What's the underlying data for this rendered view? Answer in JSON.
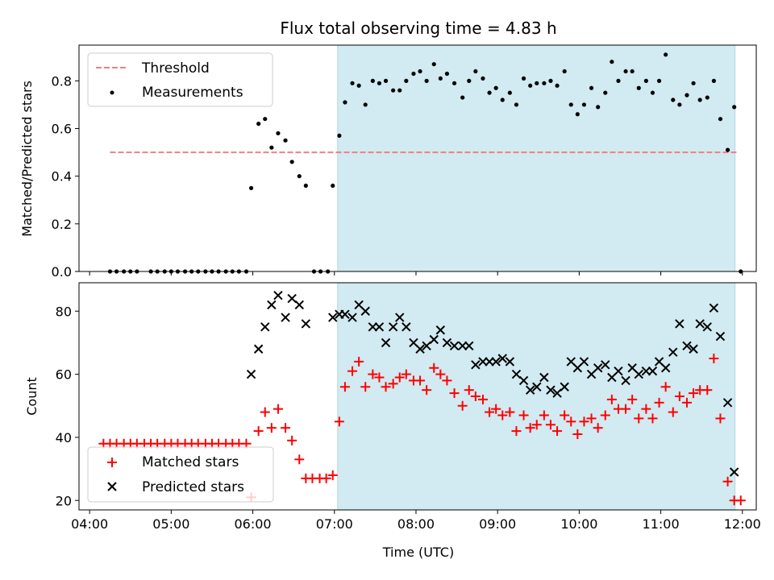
{
  "chart_data": [
    {
      "type": "scatter",
      "title": "Flux total observing time = 4.83 h",
      "xlabel": "",
      "ylabel": "Matched/Predicted stars",
      "ylim": [
        0,
        0.95
      ],
      "yticks": [
        "0.0",
        "0.2",
        "0.4",
        "0.6",
        "0.8"
      ],
      "ytick_values": [
        0,
        0.2,
        0.4,
        0.6,
        0.8
      ],
      "legend_position": "upper-left",
      "threshold": {
        "name": "Threshold",
        "value": 0.5,
        "x_range": [
          4.25,
          11.93
        ],
        "color": "#f08080",
        "style": "dashed"
      },
      "series": [
        {
          "name": "Measurements",
          "color": "#000000",
          "marker": "dot",
          "points": [
            [
              4.25,
              0.0
            ],
            [
              4.33,
              0.0
            ],
            [
              4.42,
              0.0
            ],
            [
              4.5,
              0.0
            ],
            [
              4.58,
              0.0
            ],
            [
              4.75,
              0.0
            ],
            [
              4.83,
              0.0
            ],
            [
              4.92,
              0.0
            ],
            [
              5.0,
              0.0
            ],
            [
              5.08,
              0.0
            ],
            [
              5.17,
              0.0
            ],
            [
              5.25,
              0.0
            ],
            [
              5.33,
              0.0
            ],
            [
              5.42,
              0.0
            ],
            [
              5.5,
              0.0
            ],
            [
              5.58,
              0.0
            ],
            [
              5.67,
              0.0
            ],
            [
              5.75,
              0.0
            ],
            [
              5.83,
              0.0
            ],
            [
              5.92,
              0.0
            ],
            [
              5.98,
              0.35
            ],
            [
              6.07,
              0.62
            ],
            [
              6.15,
              0.64
            ],
            [
              6.23,
              0.52
            ],
            [
              6.31,
              0.58
            ],
            [
              6.4,
              0.55
            ],
            [
              6.48,
              0.46
            ],
            [
              6.57,
              0.4
            ],
            [
              6.65,
              0.36
            ],
            [
              6.75,
              0.0
            ],
            [
              6.83,
              0.0
            ],
            [
              6.92,
              0.0
            ],
            [
              6.98,
              0.36
            ],
            [
              7.06,
              0.57
            ],
            [
              7.13,
              0.71
            ],
            [
              7.22,
              0.79
            ],
            [
              7.3,
              0.78
            ],
            [
              7.38,
              0.7
            ],
            [
              7.47,
              0.8
            ],
            [
              7.55,
              0.79
            ],
            [
              7.63,
              0.8
            ],
            [
              7.72,
              0.76
            ],
            [
              7.8,
              0.76
            ],
            [
              7.88,
              0.8
            ],
            [
              7.97,
              0.83
            ],
            [
              8.05,
              0.84
            ],
            [
              8.13,
              0.8
            ],
            [
              8.22,
              0.87
            ],
            [
              8.3,
              0.81
            ],
            [
              8.38,
              0.83
            ],
            [
              8.47,
              0.79
            ],
            [
              8.57,
              0.73
            ],
            [
              8.65,
              0.8
            ],
            [
              8.73,
              0.84
            ],
            [
              8.82,
              0.81
            ],
            [
              8.9,
              0.75
            ],
            [
              8.98,
              0.77
            ],
            [
              9.06,
              0.72
            ],
            [
              9.15,
              0.75
            ],
            [
              9.23,
              0.7
            ],
            [
              9.32,
              0.81
            ],
            [
              9.4,
              0.78
            ],
            [
              9.48,
              0.79
            ],
            [
              9.57,
              0.79
            ],
            [
              9.65,
              0.8
            ],
            [
              9.73,
              0.78
            ],
            [
              9.82,
              0.84
            ],
            [
              9.9,
              0.7
            ],
            [
              9.98,
              0.66
            ],
            [
              10.06,
              0.7
            ],
            [
              10.15,
              0.77
            ],
            [
              10.23,
              0.69
            ],
            [
              10.32,
              0.75
            ],
            [
              10.4,
              0.88
            ],
            [
              10.48,
              0.8
            ],
            [
              10.57,
              0.84
            ],
            [
              10.65,
              0.84
            ],
            [
              10.73,
              0.77
            ],
            [
              10.82,
              0.8
            ],
            [
              10.9,
              0.75
            ],
            [
              10.98,
              0.8
            ],
            [
              11.06,
              0.91
            ],
            [
              11.15,
              0.72
            ],
            [
              11.23,
              0.7
            ],
            [
              11.32,
              0.74
            ],
            [
              11.4,
              0.79
            ],
            [
              11.48,
              0.72
            ],
            [
              11.57,
              0.73
            ],
            [
              11.65,
              0.8
            ],
            [
              11.73,
              0.64
            ],
            [
              11.82,
              0.51
            ],
            [
              11.9,
              0.69
            ],
            [
              11.98,
              0.0
            ]
          ]
        }
      ]
    },
    {
      "type": "scatter",
      "title": "",
      "xlabel": "Time (UTC)",
      "ylabel": "Count",
      "ylim": [
        17,
        89
      ],
      "yticks": [
        "20",
        "40",
        "60",
        "80"
      ],
      "ytick_values": [
        20,
        40,
        60,
        80
      ],
      "legend_position": "lower-left",
      "series": [
        {
          "name": "Matched stars",
          "color": "#ff0000",
          "marker": "plus",
          "points": [
            [
              4.17,
              38
            ],
            [
              4.25,
              38
            ],
            [
              4.33,
              38
            ],
            [
              4.42,
              38
            ],
            [
              4.5,
              38
            ],
            [
              4.58,
              38
            ],
            [
              4.67,
              38
            ],
            [
              4.75,
              38
            ],
            [
              4.83,
              38
            ],
            [
              4.92,
              38
            ],
            [
              5.0,
              38
            ],
            [
              5.08,
              38
            ],
            [
              5.17,
              38
            ],
            [
              5.25,
              38
            ],
            [
              5.33,
              38
            ],
            [
              5.42,
              38
            ],
            [
              5.5,
              38
            ],
            [
              5.58,
              38
            ],
            [
              5.67,
              38
            ],
            [
              5.75,
              38
            ],
            [
              5.83,
              38
            ],
            [
              5.92,
              38
            ],
            [
              5.98,
              21
            ],
            [
              6.07,
              42
            ],
            [
              6.15,
              48
            ],
            [
              6.23,
              43
            ],
            [
              6.31,
              49
            ],
            [
              6.4,
              43
            ],
            [
              6.48,
              39
            ],
            [
              6.57,
              33
            ],
            [
              6.65,
              27
            ],
            [
              6.73,
              27
            ],
            [
              6.82,
              27
            ],
            [
              6.9,
              27
            ],
            [
              6.98,
              28
            ],
            [
              7.06,
              45
            ],
            [
              7.13,
              56
            ],
            [
              7.22,
              61
            ],
            [
              7.3,
              64
            ],
            [
              7.38,
              56
            ],
            [
              7.47,
              60
            ],
            [
              7.55,
              59
            ],
            [
              7.63,
              56
            ],
            [
              7.72,
              57
            ],
            [
              7.8,
              59
            ],
            [
              7.88,
              60
            ],
            [
              7.97,
              58
            ],
            [
              8.05,
              58
            ],
            [
              8.13,
              55
            ],
            [
              8.22,
              62
            ],
            [
              8.3,
              60
            ],
            [
              8.38,
              58
            ],
            [
              8.47,
              54
            ],
            [
              8.57,
              50
            ],
            [
              8.65,
              55
            ],
            [
              8.73,
              53
            ],
            [
              8.82,
              52
            ],
            [
              8.9,
              48
            ],
            [
              8.98,
              49
            ],
            [
              9.06,
              47
            ],
            [
              9.15,
              48
            ],
            [
              9.23,
              42
            ],
            [
              9.32,
              47
            ],
            [
              9.4,
              43
            ],
            [
              9.48,
              44
            ],
            [
              9.57,
              47
            ],
            [
              9.65,
              44
            ],
            [
              9.73,
              42
            ],
            [
              9.82,
              47
            ],
            [
              9.9,
              45
            ],
            [
              9.98,
              41
            ],
            [
              10.06,
              45
            ],
            [
              10.15,
              46
            ],
            [
              10.23,
              43
            ],
            [
              10.32,
              47
            ],
            [
              10.4,
              52
            ],
            [
              10.48,
              49
            ],
            [
              10.57,
              49
            ],
            [
              10.65,
              52
            ],
            [
              10.73,
              46
            ],
            [
              10.82,
              49
            ],
            [
              10.9,
              46
            ],
            [
              10.98,
              51
            ],
            [
              11.06,
              56
            ],
            [
              11.15,
              48
            ],
            [
              11.23,
              53
            ],
            [
              11.32,
              51
            ],
            [
              11.4,
              54
            ],
            [
              11.48,
              55
            ],
            [
              11.57,
              55
            ],
            [
              11.65,
              65
            ],
            [
              11.73,
              46
            ],
            [
              11.82,
              26
            ],
            [
              11.9,
              20
            ],
            [
              11.98,
              20
            ]
          ]
        },
        {
          "name": "Predicted stars",
          "color": "#000000",
          "marker": "x",
          "points": [
            [
              5.98,
              60
            ],
            [
              6.07,
              68
            ],
            [
              6.15,
              75
            ],
            [
              6.23,
              82
            ],
            [
              6.31,
              85
            ],
            [
              6.4,
              78
            ],
            [
              6.48,
              84
            ],
            [
              6.57,
              82
            ],
            [
              6.65,
              76
            ],
            [
              6.98,
              78
            ],
            [
              7.06,
              79
            ],
            [
              7.13,
              79
            ],
            [
              7.22,
              78
            ],
            [
              7.3,
              82
            ],
            [
              7.38,
              80
            ],
            [
              7.47,
              75
            ],
            [
              7.55,
              75
            ],
            [
              7.63,
              70
            ],
            [
              7.72,
              75
            ],
            [
              7.8,
              78
            ],
            [
              7.88,
              75
            ],
            [
              7.97,
              70
            ],
            [
              8.05,
              68
            ],
            [
              8.13,
              69
            ],
            [
              8.22,
              71
            ],
            [
              8.3,
              74
            ],
            [
              8.38,
              70
            ],
            [
              8.47,
              69
            ],
            [
              8.57,
              69
            ],
            [
              8.65,
              69
            ],
            [
              8.73,
              63
            ],
            [
              8.82,
              64
            ],
            [
              8.9,
              64
            ],
            [
              8.98,
              64
            ],
            [
              9.06,
              65
            ],
            [
              9.15,
              64
            ],
            [
              9.23,
              60
            ],
            [
              9.32,
              58
            ],
            [
              9.4,
              55
            ],
            [
              9.48,
              56
            ],
            [
              9.57,
              59
            ],
            [
              9.65,
              55
            ],
            [
              9.73,
              54
            ],
            [
              9.82,
              56
            ],
            [
              9.9,
              64
            ],
            [
              9.98,
              62
            ],
            [
              10.06,
              64
            ],
            [
              10.15,
              60
            ],
            [
              10.23,
              62
            ],
            [
              10.32,
              63
            ],
            [
              10.4,
              59
            ],
            [
              10.48,
              61
            ],
            [
              10.57,
              58
            ],
            [
              10.65,
              62
            ],
            [
              10.73,
              60
            ],
            [
              10.82,
              61
            ],
            [
              10.9,
              61
            ],
            [
              10.98,
              64
            ],
            [
              11.06,
              62
            ],
            [
              11.15,
              67
            ],
            [
              11.23,
              76
            ],
            [
              11.32,
              69
            ],
            [
              11.4,
              68
            ],
            [
              11.48,
              76
            ],
            [
              11.57,
              75
            ],
            [
              11.65,
              81
            ],
            [
              11.73,
              72
            ],
            [
              11.82,
              51
            ],
            [
              11.9,
              29
            ]
          ]
        }
      ]
    }
  ],
  "x_axis": {
    "range": [
      3.87,
      12.17
    ],
    "ticks": [
      "04:00",
      "05:00",
      "06:00",
      "07:00",
      "08:00",
      "09:00",
      "10:00",
      "11:00",
      "12:00"
    ],
    "tick_values": [
      4,
      5,
      6,
      7,
      8,
      9,
      10,
      11,
      12
    ]
  },
  "observing_window": {
    "start": 7.04,
    "end": 11.91,
    "color": "#add8e6"
  }
}
